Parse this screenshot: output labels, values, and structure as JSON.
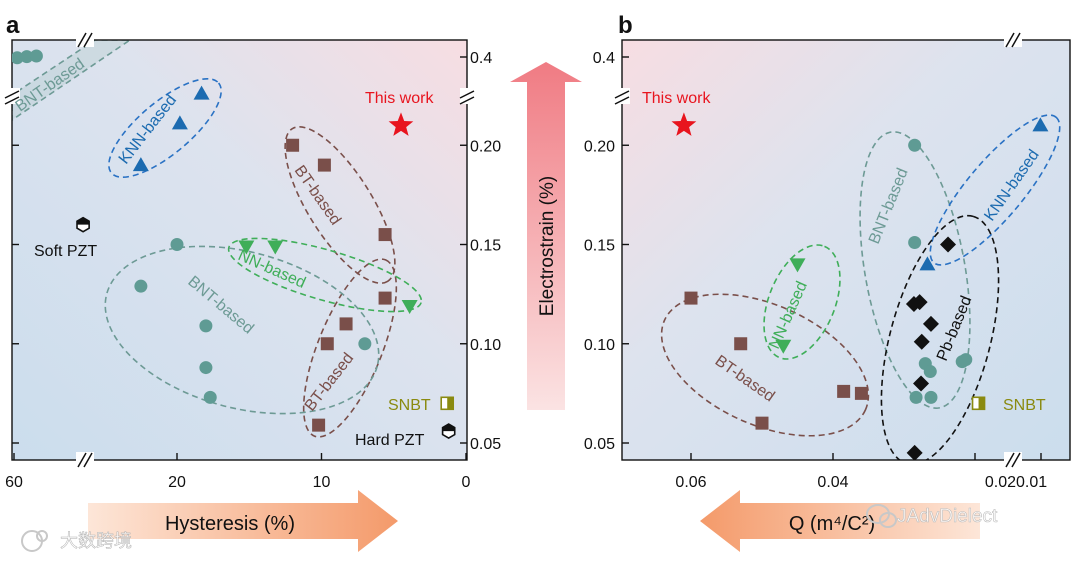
{
  "panel_labels": {
    "a": "a",
    "b": "b"
  },
  "watermarks": {
    "left": "大数跨境",
    "right": "JAdvDielect"
  },
  "colors": {
    "bt": "#7a4f4a",
    "bnt": "#5f9b94",
    "knn": "#1c6bb0",
    "nn": "#3fae59",
    "pb": "#111111",
    "thiswork": "#e8141e",
    "snbt": "#8a8a10",
    "text": "#222222",
    "bg_blue": "#cfe0ef",
    "bg_pink": "#f6dde2",
    "arrow_up": "#f2888f",
    "arrow_side": "#f4a476"
  },
  "center_axis": {
    "label": "Electrostrain (%)",
    "tick_labels": [
      "0.05",
      "0.10",
      "0.15",
      "0.20",
      "0.4"
    ]
  },
  "chart_data": [
    {
      "id": "a",
      "type": "scatter",
      "title": "",
      "xlabel": "Hysteresis (%)",
      "ylabel": "Electrostrain (%)",
      "x_reversed": true,
      "x_ticks": [
        0,
        10,
        20,
        60
      ],
      "x_tick_labels": [
        "0",
        "10",
        "20",
        "60"
      ],
      "x_axis_break": true,
      "y_axis_break": true,
      "y_ticks": [
        0.05,
        0.1,
        0.15,
        0.2,
        0.4
      ],
      "series": [
        {
          "name": "BNT-based",
          "marker": "circle",
          "color": "#5f9b94",
          "points": [
            [
              20,
              0.15
            ],
            [
              22.5,
              0.129
            ],
            [
              18,
              0.109
            ],
            [
              18,
              0.088
            ],
            [
              17.7,
              0.073
            ],
            [
              7,
              0.1
            ],
            [
              59,
              0.396
            ],
            [
              56,
              0.402
            ],
            [
              53,
              0.405
            ]
          ]
        },
        {
          "name": "KNN-based",
          "marker": "triangle-up",
          "color": "#1c6bb0",
          "points": [
            [
              22.5,
              0.19
            ],
            [
              19.8,
              0.211
            ],
            [
              18.3,
              0.226
            ]
          ]
        },
        {
          "name": "BT-based",
          "marker": "square",
          "color": "#7a4f4a",
          "points": [
            [
              12,
              0.2
            ],
            [
              9.8,
              0.19
            ],
            [
              5.6,
              0.155
            ],
            [
              5.6,
              0.123
            ],
            [
              8.3,
              0.11
            ],
            [
              9.6,
              0.1
            ],
            [
              10.2,
              0.059
            ]
          ]
        },
        {
          "name": "NN-based",
          "marker": "triangle-down",
          "color": "#3fae59",
          "points": [
            [
              15.2,
              0.149
            ],
            [
              13.2,
              0.149
            ],
            [
              3.9,
              0.119
            ]
          ]
        },
        {
          "name": "This work",
          "marker": "star",
          "color": "#e8141e",
          "points": [
            [
              4.5,
              0.21
            ]
          ]
        },
        {
          "name": "Soft PZT",
          "marker": "hexagon-half",
          "color": "#111111",
          "points": [
            [
              26.5,
              0.16
            ]
          ]
        },
        {
          "name": "Hard PZT",
          "marker": "hexagon-half",
          "color": "#111111",
          "points": [
            [
              1.2,
              0.056
            ]
          ]
        },
        {
          "name": "SNBT",
          "marker": "square-half",
          "color": "#8a8a10",
          "points": [
            [
              1.3,
              0.07
            ]
          ]
        }
      ],
      "annotations": [
        "BNT-based",
        "KNN-based",
        "BT-based",
        "BT-based",
        "NN-based",
        "BNT-based",
        "This work",
        "Soft PZT",
        "Hard PZT",
        "SNBT"
      ]
    },
    {
      "id": "b",
      "type": "scatter",
      "title": "",
      "xlabel": "Q (m⁴/C²)",
      "ylabel": "Electrostrain (%)",
      "x_reversed": true,
      "x_ticks": [
        0.06,
        0.04,
        0.02,
        0.01
      ],
      "x_tick_labels": [
        "0.06",
        "0.04",
        "0.020.01"
      ],
      "x_axis_break": true,
      "y_axis_break": true,
      "y_ticks": [
        0.05,
        0.1,
        0.15,
        0.2,
        0.4
      ],
      "series": [
        {
          "name": "BT-based",
          "marker": "square",
          "color": "#7a4f4a",
          "points": [
            [
              0.06,
              0.123
            ],
            [
              0.053,
              0.1
            ],
            [
              0.05,
              0.06
            ],
            [
              0.0385,
              0.076
            ],
            [
              0.036,
              0.075
            ]
          ]
        },
        {
          "name": "NN-based",
          "marker": "triangle-down",
          "color": "#3fae59",
          "points": [
            [
              0.045,
              0.14
            ],
            [
              0.047,
              0.099
            ]
          ]
        },
        {
          "name": "BNT-based",
          "marker": "circle",
          "color": "#5f9b94",
          "points": [
            [
              0.0285,
              0.2
            ],
            [
              0.0285,
              0.151
            ],
            [
              0.027,
              0.09
            ],
            [
              0.0263,
              0.086
            ],
            [
              0.0283,
              0.073
            ],
            [
              0.0262,
              0.073
            ],
            [
              0.0218,
              0.091
            ],
            [
              0.0213,
              0.092
            ]
          ]
        },
        {
          "name": "KNN-based",
          "marker": "triangle-up",
          "color": "#1c6bb0",
          "points": [
            [
              0.0102,
              0.21
            ],
            [
              0.0267,
              0.14
            ]
          ]
        },
        {
          "name": "Pb-based",
          "marker": "diamond",
          "color": "#111111",
          "points": [
            [
              0.0238,
              0.15
            ],
            [
              0.0286,
              0.12
            ],
            [
              0.0278,
              0.121
            ],
            [
              0.0262,
              0.11
            ],
            [
              0.0275,
              0.101
            ],
            [
              0.0276,
              0.08
            ],
            [
              0.0285,
              0.045
            ]
          ]
        },
        {
          "name": "This work",
          "marker": "star",
          "color": "#e8141e",
          "points": [
            [
              0.061,
              0.21
            ]
          ]
        },
        {
          "name": "SNBT",
          "marker": "square-half",
          "color": "#8a8a10",
          "points": [
            [
              0.0195,
              0.07
            ]
          ]
        }
      ],
      "annotations": [
        "This work",
        "BNT-based",
        "KNN-based",
        "NN-based",
        "Pb-based",
        "BT-based",
        "SNBT"
      ]
    }
  ]
}
